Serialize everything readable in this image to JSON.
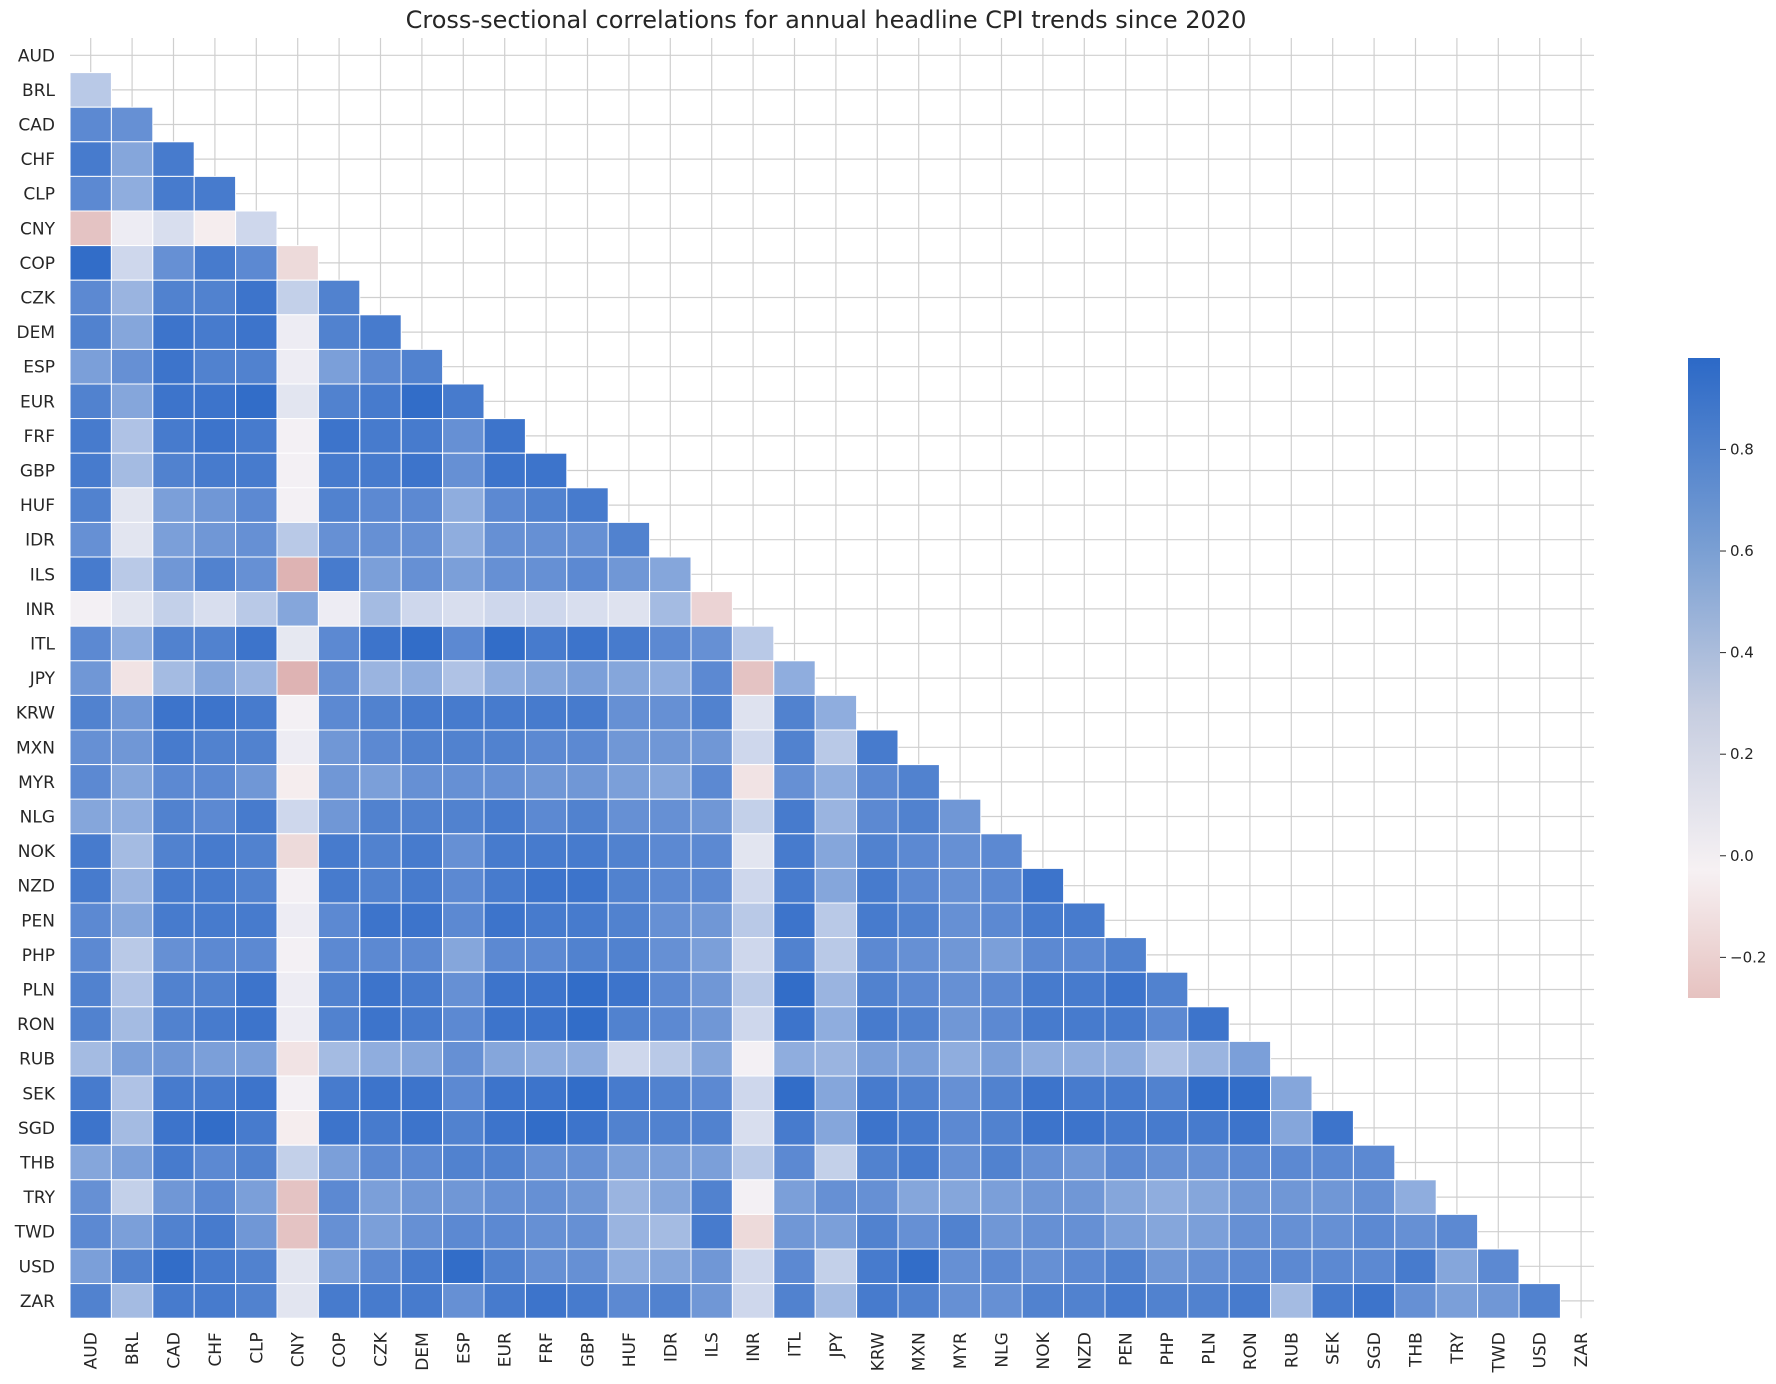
{
  "chart_data": {
    "type": "heatmap",
    "title": "Cross-sectional correlations for annual headline CPI trends since 2020",
    "labels": [
      "AUD",
      "BRL",
      "CAD",
      "CHF",
      "CLP",
      "CNY",
      "COP",
      "CZK",
      "DEM",
      "ESP",
      "EUR",
      "FRF",
      "GBP",
      "HUF",
      "IDR",
      "ILS",
      "INR",
      "ITL",
      "JPY",
      "KRW",
      "MXN",
      "MYR",
      "NLG",
      "NOK",
      "NZD",
      "PEN",
      "PHP",
      "PLN",
      "RON",
      "RUB",
      "SEK",
      "SGD",
      "THB",
      "TRY",
      "TWD",
      "USD",
      "ZAR"
    ],
    "mask": "upper triangle including diagonal",
    "colorbar": {
      "ticks": [
        0.8,
        0.6,
        0.4,
        0.2,
        0.0,
        -0.2
      ],
      "tick_labels": [
        "0.8",
        "0.6",
        "0.4",
        "0.2",
        "0.0",
        "−0.2"
      ],
      "vmin": -0.28,
      "vmax": 0.98
    },
    "colors": {
      "positive": "#2c69c7",
      "negative": "#d49a98",
      "neutral": "#f7f3f5"
    },
    "grid": true,
    "values": [
      [],
      [
        0.3
      ],
      [
        0.75,
        0.7
      ],
      [
        0.85,
        0.55,
        0.85
      ],
      [
        0.75,
        0.5,
        0.85,
        0.85
      ],
      [
        -0.15,
        0.05,
        0.15,
        -0.02,
        0.2
      ],
      [
        0.95,
        0.2,
        0.7,
        0.85,
        0.75,
        -0.08
      ],
      [
        0.75,
        0.45,
        0.8,
        0.8,
        0.9,
        0.25,
        0.8
      ],
      [
        0.8,
        0.55,
        0.9,
        0.85,
        0.9,
        0.05,
        0.8,
        0.85
      ],
      [
        0.6,
        0.7,
        0.9,
        0.8,
        0.8,
        0.05,
        0.6,
        0.75,
        0.8
      ],
      [
        0.8,
        0.55,
        0.9,
        0.9,
        0.95,
        0.1,
        0.8,
        0.85,
        0.95,
        0.85
      ],
      [
        0.85,
        0.35,
        0.85,
        0.9,
        0.85,
        0.02,
        0.9,
        0.85,
        0.85,
        0.7,
        0.9
      ],
      [
        0.85,
        0.4,
        0.8,
        0.85,
        0.85,
        0.02,
        0.85,
        0.85,
        0.9,
        0.7,
        0.9,
        0.9
      ],
      [
        0.8,
        0.1,
        0.6,
        0.65,
        0.75,
        0.02,
        0.8,
        0.75,
        0.75,
        0.5,
        0.75,
        0.8,
        0.85
      ],
      [
        0.7,
        0.1,
        0.6,
        0.65,
        0.7,
        0.3,
        0.7,
        0.7,
        0.7,
        0.5,
        0.7,
        0.7,
        0.7,
        0.8
      ],
      [
        0.85,
        0.3,
        0.65,
        0.8,
        0.7,
        -0.2,
        0.85,
        0.6,
        0.7,
        0.6,
        0.7,
        0.7,
        0.75,
        0.65,
        0.55
      ],
      [
        0.02,
        0.1,
        0.25,
        0.15,
        0.3,
        0.55,
        0.05,
        0.4,
        0.2,
        0.15,
        0.2,
        0.2,
        0.15,
        0.12,
        0.4,
        -0.1
      ],
      [
        0.75,
        0.5,
        0.8,
        0.8,
        0.9,
        0.08,
        0.75,
        0.9,
        0.95,
        0.75,
        0.95,
        0.85,
        0.9,
        0.85,
        0.75,
        0.7,
        0.3
      ],
      [
        0.65,
        -0.05,
        0.4,
        0.55,
        0.45,
        -0.2,
        0.7,
        0.45,
        0.5,
        0.35,
        0.5,
        0.55,
        0.6,
        0.55,
        0.5,
        0.75,
        -0.15,
        0.5
      ],
      [
        0.8,
        0.65,
        0.9,
        0.9,
        0.85,
        0.02,
        0.75,
        0.8,
        0.85,
        0.85,
        0.85,
        0.85,
        0.85,
        0.7,
        0.7,
        0.8,
        0.12,
        0.8,
        0.5
      ],
      [
        0.7,
        0.65,
        0.85,
        0.8,
        0.8,
        0.05,
        0.65,
        0.75,
        0.8,
        0.8,
        0.8,
        0.75,
        0.75,
        0.65,
        0.65,
        0.65,
        0.2,
        0.8,
        0.3,
        0.85
      ],
      [
        0.75,
        0.55,
        0.75,
        0.75,
        0.65,
        -0.02,
        0.65,
        0.6,
        0.7,
        0.7,
        0.7,
        0.65,
        0.65,
        0.6,
        0.55,
        0.75,
        -0.05,
        0.7,
        0.5,
        0.75,
        0.8
      ],
      [
        0.55,
        0.5,
        0.8,
        0.75,
        0.85,
        0.2,
        0.65,
        0.8,
        0.8,
        0.8,
        0.85,
        0.75,
        0.8,
        0.7,
        0.7,
        0.65,
        0.25,
        0.85,
        0.45,
        0.75,
        0.8,
        0.65
      ],
      [
        0.85,
        0.4,
        0.8,
        0.85,
        0.8,
        -0.08,
        0.85,
        0.8,
        0.85,
        0.7,
        0.85,
        0.85,
        0.85,
        0.8,
        0.75,
        0.75,
        0.1,
        0.85,
        0.55,
        0.8,
        0.75,
        0.7,
        0.75
      ],
      [
        0.85,
        0.45,
        0.85,
        0.85,
        0.8,
        0.02,
        0.85,
        0.8,
        0.85,
        0.75,
        0.85,
        0.9,
        0.9,
        0.8,
        0.75,
        0.75,
        0.2,
        0.85,
        0.55,
        0.85,
        0.75,
        0.7,
        0.75,
        0.9
      ],
      [
        0.75,
        0.55,
        0.85,
        0.85,
        0.85,
        0.05,
        0.75,
        0.9,
        0.9,
        0.75,
        0.9,
        0.85,
        0.85,
        0.8,
        0.7,
        0.65,
        0.3,
        0.9,
        0.3,
        0.85,
        0.8,
        0.7,
        0.75,
        0.85,
        0.85
      ],
      [
        0.75,
        0.3,
        0.7,
        0.75,
        0.75,
        0.02,
        0.75,
        0.75,
        0.75,
        0.55,
        0.75,
        0.75,
        0.8,
        0.8,
        0.7,
        0.6,
        0.2,
        0.8,
        0.3,
        0.75,
        0.7,
        0.65,
        0.6,
        0.75,
        0.75,
        0.8
      ],
      [
        0.8,
        0.35,
        0.8,
        0.8,
        0.9,
        0.05,
        0.8,
        0.9,
        0.85,
        0.7,
        0.9,
        0.9,
        0.95,
        0.9,
        0.75,
        0.65,
        0.3,
        0.95,
        0.45,
        0.8,
        0.75,
        0.7,
        0.75,
        0.85,
        0.85,
        0.9,
        0.8
      ],
      [
        0.8,
        0.4,
        0.8,
        0.85,
        0.9,
        0.05,
        0.8,
        0.9,
        0.85,
        0.75,
        0.9,
        0.9,
        0.95,
        0.8,
        0.75,
        0.65,
        0.2,
        0.9,
        0.5,
        0.85,
        0.8,
        0.65,
        0.75,
        0.85,
        0.85,
        0.85,
        0.75,
        0.9
      ],
      [
        0.4,
        0.6,
        0.65,
        0.6,
        0.6,
        -0.05,
        0.4,
        0.5,
        0.55,
        0.7,
        0.55,
        0.5,
        0.5,
        0.2,
        0.3,
        0.55,
        0.02,
        0.5,
        0.45,
        0.6,
        0.6,
        0.5,
        0.6,
        0.5,
        0.5,
        0.5,
        0.35,
        0.45,
        0.6
      ],
      [
        0.85,
        0.35,
        0.85,
        0.85,
        0.9,
        0.02,
        0.85,
        0.9,
        0.9,
        0.75,
        0.9,
        0.9,
        0.95,
        0.85,
        0.8,
        0.75,
        0.2,
        0.95,
        0.55,
        0.85,
        0.8,
        0.7,
        0.8,
        0.9,
        0.85,
        0.85,
        0.8,
        0.95,
        0.95,
        0.55
      ],
      [
        0.9,
        0.4,
        0.9,
        0.95,
        0.85,
        -0.02,
        0.9,
        0.85,
        0.9,
        0.8,
        0.9,
        0.95,
        0.9,
        0.8,
        0.8,
        0.8,
        0.15,
        0.85,
        0.55,
        0.9,
        0.85,
        0.75,
        0.8,
        0.9,
        0.9,
        0.85,
        0.85,
        0.85,
        0.9,
        0.55,
        0.9
      ],
      [
        0.55,
        0.6,
        0.85,
        0.75,
        0.8,
        0.25,
        0.6,
        0.75,
        0.75,
        0.8,
        0.8,
        0.7,
        0.7,
        0.6,
        0.6,
        0.6,
        0.3,
        0.75,
        0.25,
        0.8,
        0.85,
        0.7,
        0.8,
        0.7,
        0.65,
        0.75,
        0.7,
        0.7,
        0.75,
        0.75,
        0.75,
        0.75
      ],
      [
        0.7,
        0.25,
        0.65,
        0.75,
        0.6,
        -0.15,
        0.75,
        0.6,
        0.65,
        0.65,
        0.7,
        0.7,
        0.65,
        0.45,
        0.55,
        0.8,
        0.02,
        0.6,
        0.7,
        0.7,
        0.55,
        0.55,
        0.6,
        0.65,
        0.65,
        0.55,
        0.5,
        0.55,
        0.65,
        0.65,
        0.65,
        0.7,
        0.5
      ],
      [
        0.75,
        0.6,
        0.8,
        0.85,
        0.65,
        -0.15,
        0.7,
        0.6,
        0.7,
        0.75,
        0.75,
        0.7,
        0.7,
        0.45,
        0.4,
        0.85,
        -0.08,
        0.65,
        0.6,
        0.8,
        0.7,
        0.8,
        0.65,
        0.7,
        0.7,
        0.6,
        0.55,
        0.6,
        0.7,
        0.7,
        0.7,
        0.75,
        0.7,
        0.75
      ],
      [
        0.6,
        0.8,
        0.95,
        0.85,
        0.8,
        0.1,
        0.6,
        0.75,
        0.85,
        0.95,
        0.8,
        0.7,
        0.7,
        0.5,
        0.55,
        0.65,
        0.2,
        0.75,
        0.25,
        0.85,
        0.95,
        0.7,
        0.75,
        0.7,
        0.75,
        0.8,
        0.65,
        0.7,
        0.75,
        0.75,
        0.75,
        0.75,
        0.85,
        0.55,
        0.75
      ],
      [
        0.8,
        0.4,
        0.85,
        0.85,
        0.8,
        0.1,
        0.85,
        0.85,
        0.85,
        0.7,
        0.85,
        0.9,
        0.85,
        0.75,
        0.8,
        0.65,
        0.2,
        0.8,
        0.4,
        0.85,
        0.8,
        0.7,
        0.7,
        0.8,
        0.8,
        0.85,
        0.8,
        0.8,
        0.85,
        0.4,
        0.85,
        0.9,
        0.7,
        0.6,
        0.65,
        0.8
      ]
    ]
  }
}
